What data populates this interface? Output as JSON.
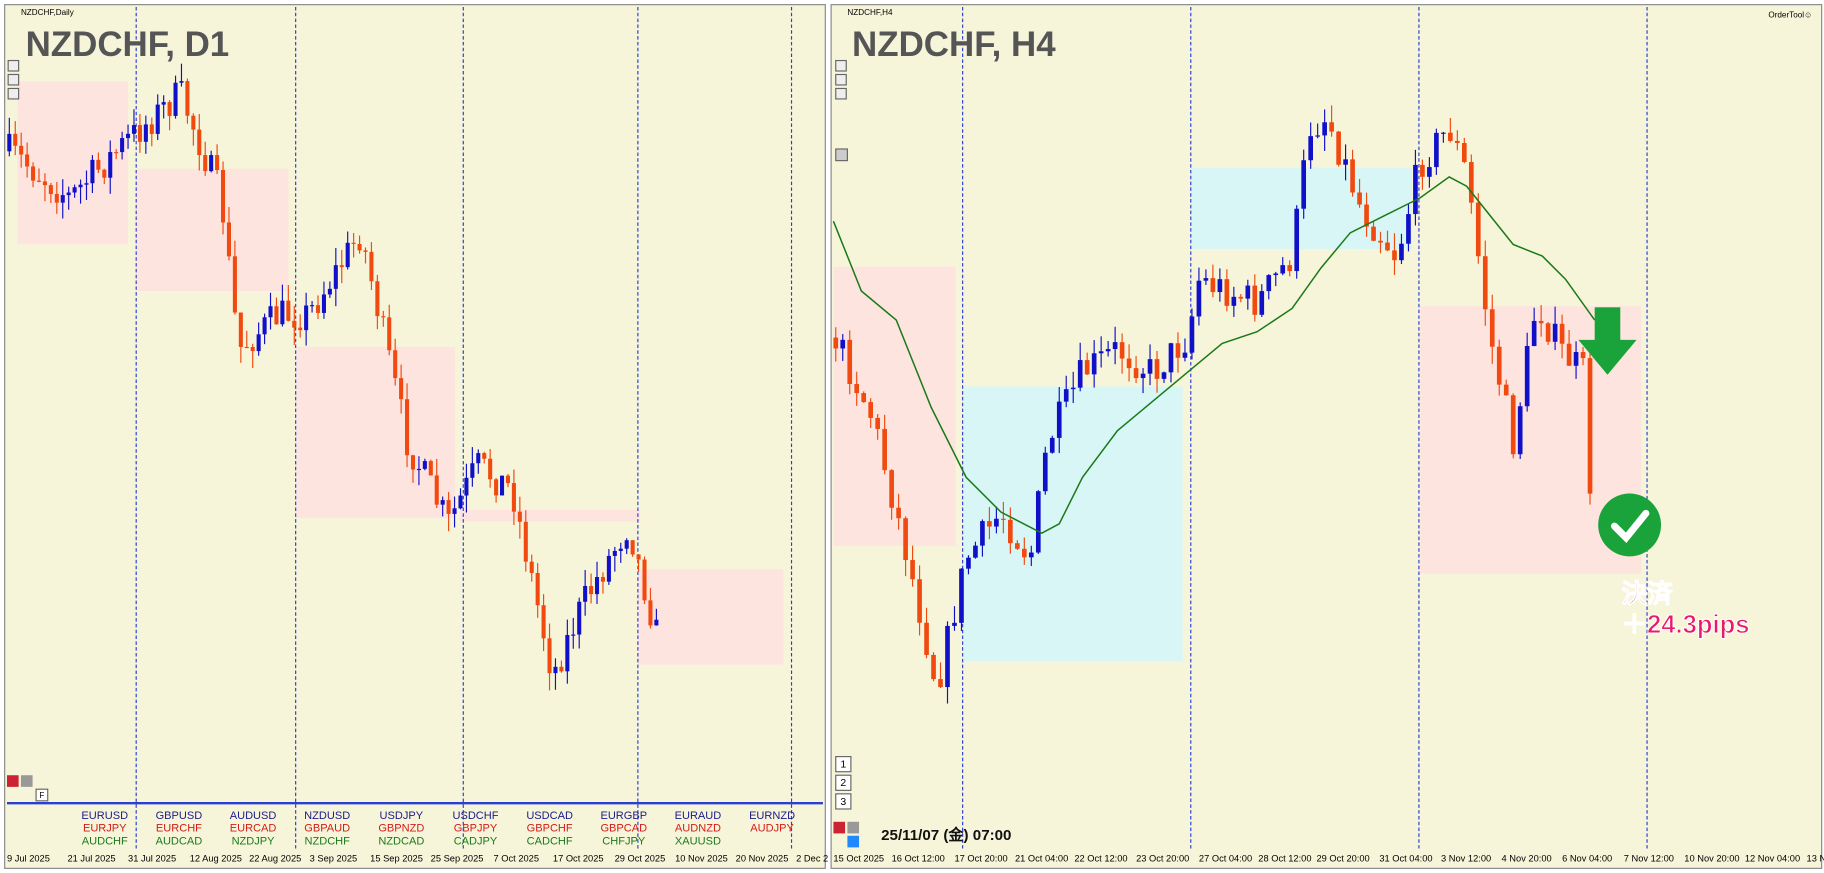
{
  "left_chart": {
    "small_title": "NZDCHF,Daily",
    "title": "NZDCHF, D1",
    "x_labels": [
      "9 Jul 2025",
      "21 Jul 2025",
      "31 Jul 2025",
      "12 Aug 2025",
      "22 Aug 2025",
      "3 Sep 2025",
      "15 Sep 2025",
      "25 Sep 2025",
      "7 Oct 2025",
      "17 Oct 2025",
      "29 Oct 2025",
      "10 Nov 2025",
      "20 Nov 2025",
      "2 Dec 2"
    ],
    "symbols": [
      [
        "EURUSD",
        "EURJPY",
        "AUDCHF"
      ],
      [
        "GBPUSD",
        "EURCHF",
        "AUDCAD"
      ],
      [
        "AUDUSD",
        "EURCAD",
        "NZDJPY"
      ],
      [
        "NZDUSD",
        "GBPAUD",
        "NZDCHF"
      ],
      [
        "USDJPY",
        "GBPNZD",
        "NZDCAD"
      ],
      [
        "USDCHF",
        "GBPJPY",
        "CADJPY"
      ],
      [
        "USDCAD",
        "GBPCHF",
        "CADCHF"
      ],
      [
        "EURGBP",
        "GBPCAD",
        "CHFJPY"
      ],
      [
        "EURAUD",
        "AUDNZD",
        "XAUUSD"
      ],
      [
        "EURNZD",
        "AUDJPY"
      ]
    ],
    "buttons": [
      "F"
    ]
  },
  "right_chart": {
    "small_title": "NZDCHF,H4",
    "title": "NZDCHF, H4",
    "order_tool": "OrderTool☺",
    "x_labels": [
      "15 Oct 2025",
      "16 Oct 12:00",
      "17 Oct 20:00",
      "21 Oct 04:00",
      "22 Oct 12:00",
      "23 Oct 20:00",
      "27 Oct 04:00",
      "28 Oct 12:00",
      "29 Oct 20:00",
      "31 Oct 04:00",
      "3 Nov 12:00",
      "4 Nov 20:00",
      "6 Nov 04:00",
      "7 Nov 12:00",
      "10 Nov 20:00",
      "12 Nov 04:00",
      "13 N"
    ],
    "time_label": "25/11/07 (金) 07:00",
    "annotation": {
      "line1": "決済",
      "line2": "＋24.3pips"
    },
    "buttons": [
      "1",
      "2",
      "3"
    ]
  }
}
